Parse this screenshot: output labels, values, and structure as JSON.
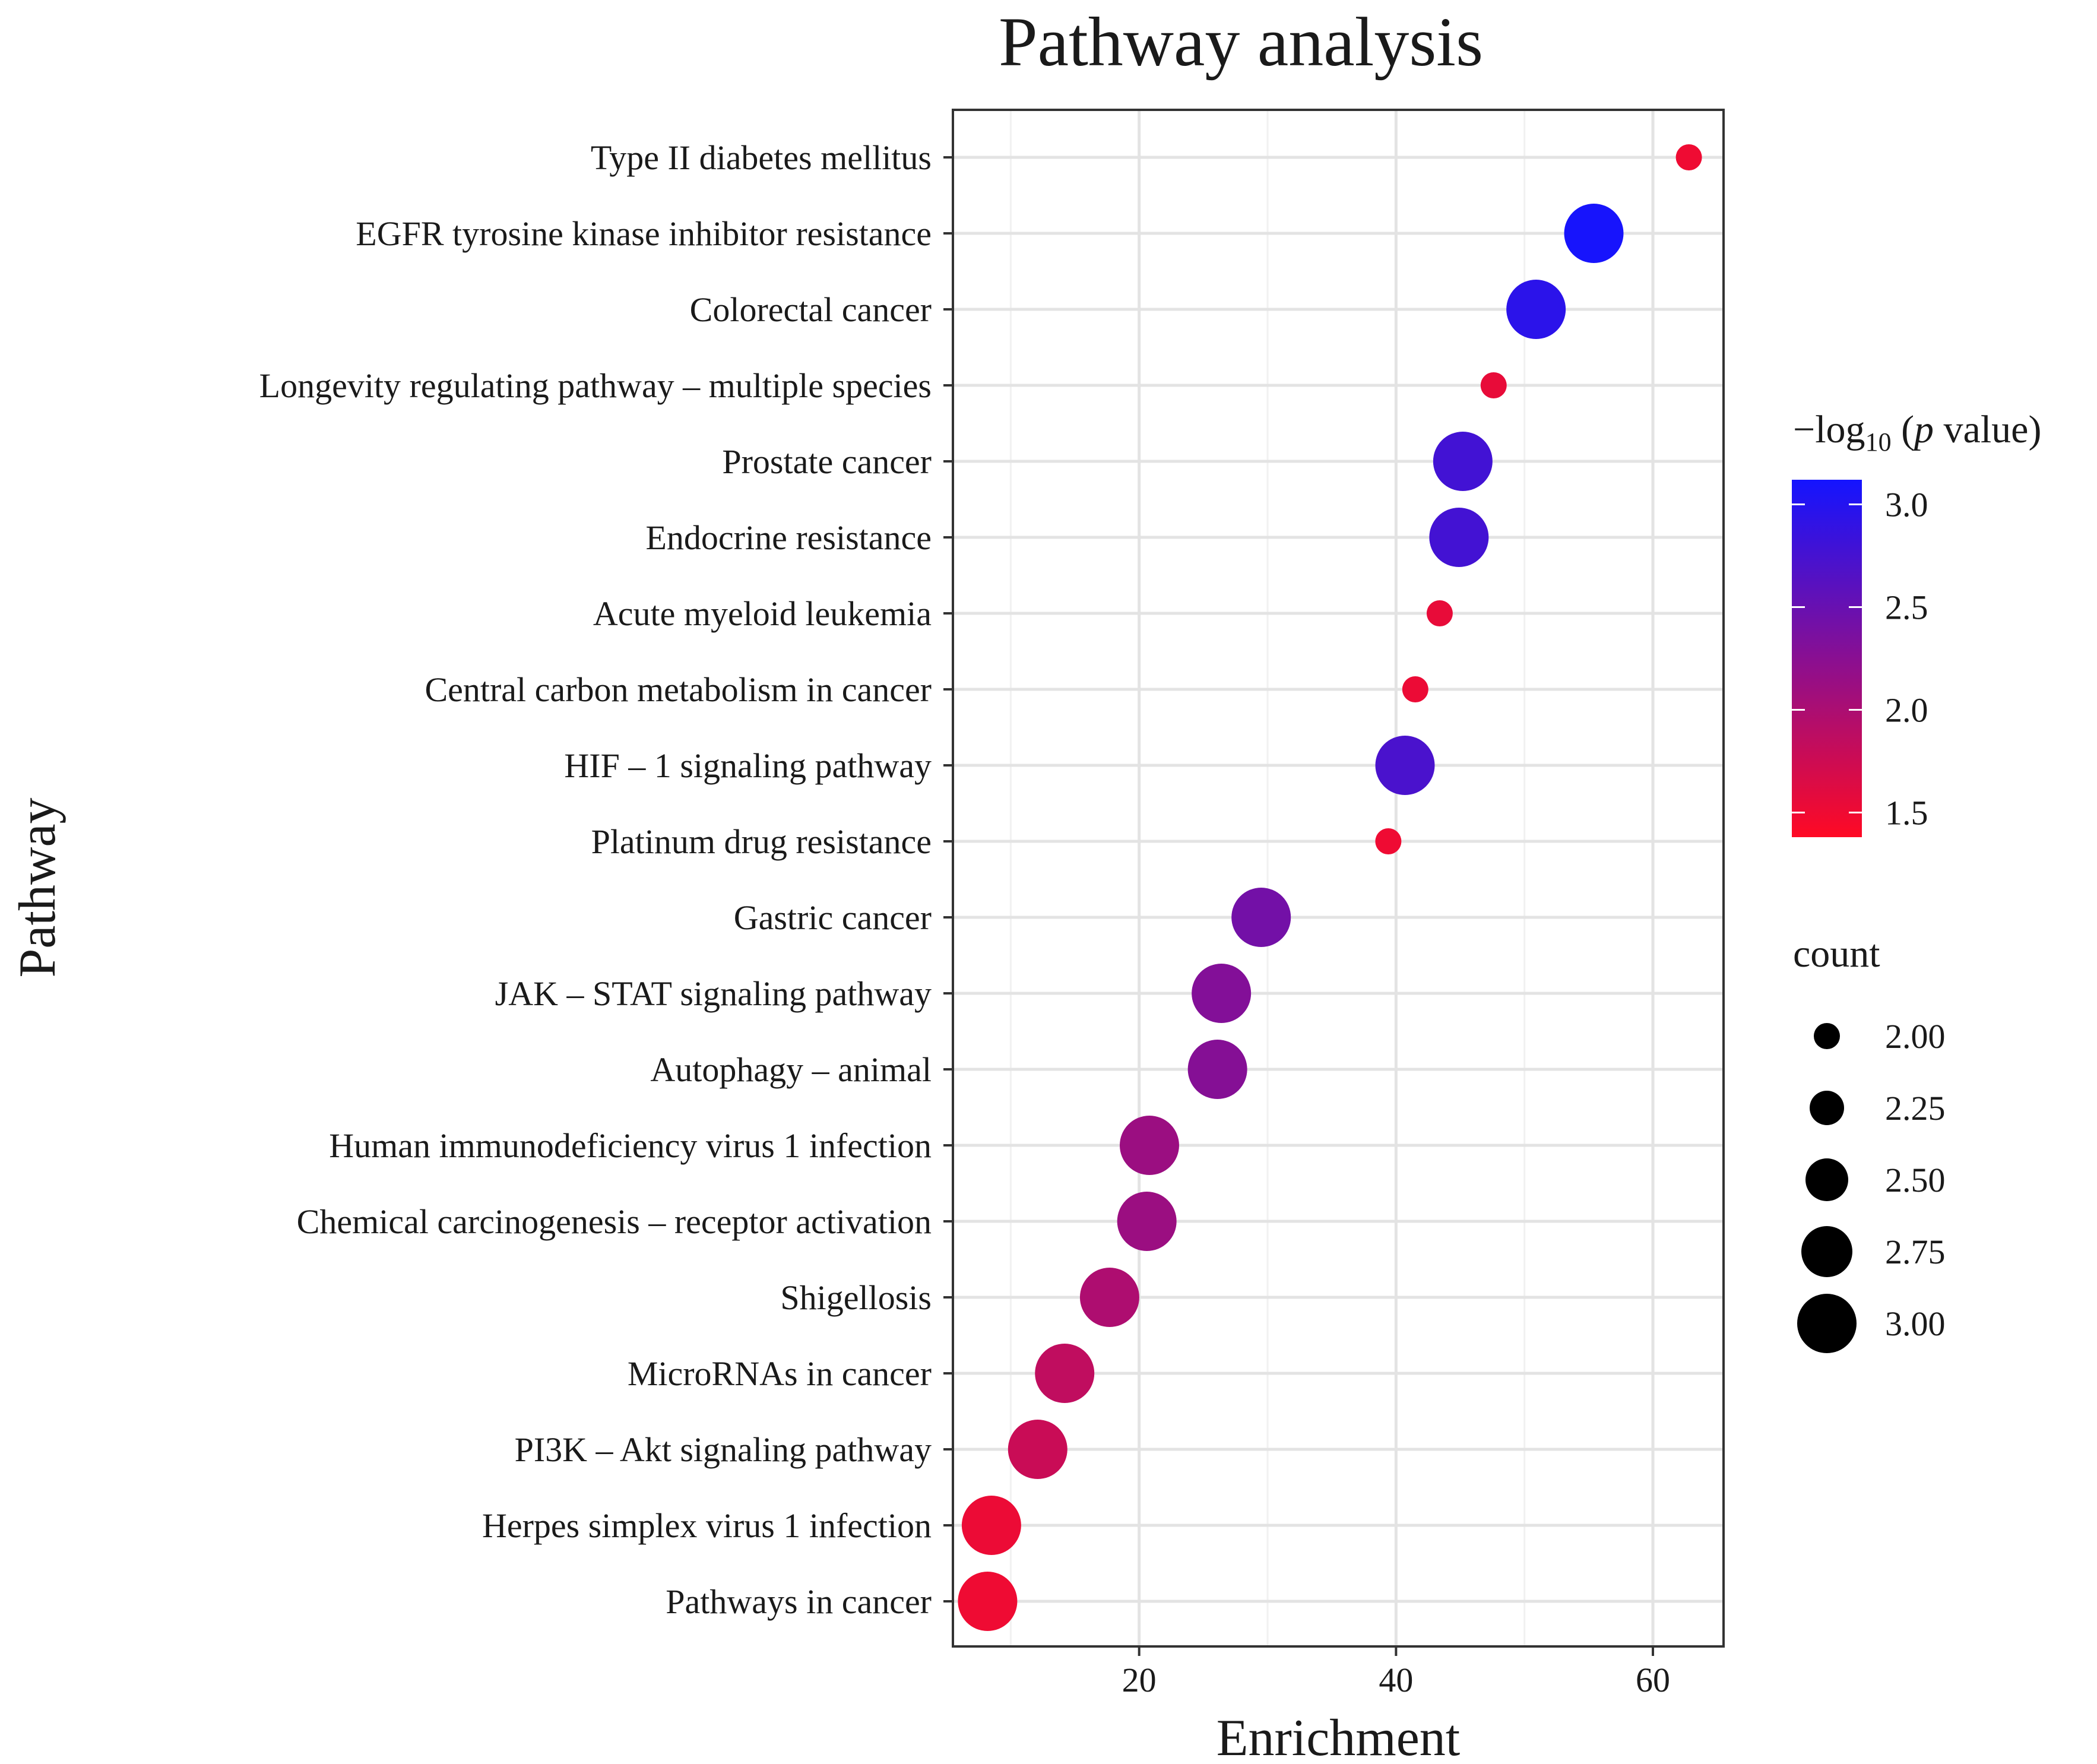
{
  "chart_data": {
    "type": "scatter",
    "title": "Pathway analysis",
    "xlabel": "Enrichment",
    "ylabel": "Pathway",
    "xlim": [
      5.5,
      65.5
    ],
    "xticks": [
      20,
      40,
      60
    ],
    "grid": true,
    "categories": [
      "Type II diabetes mellitus",
      "EGFR tyrosine kinase inhibitor resistance",
      "Colorectal cancer",
      "Longevity regulating pathway – multiple species",
      "Prostate cancer",
      "Endocrine resistance",
      "Acute myeloid leukemia",
      "Central carbon metabolism in cancer",
      "HIF – 1 signaling pathway",
      "Platinum drug resistance",
      "Gastric cancer",
      "JAK – STAT signaling pathway",
      "Autophagy – animal",
      "Human immunodeficiency virus 1 infection",
      "Chemical carcinogenesis – receptor activation",
      "Shigellosis",
      "MicroRNAs in cancer",
      "PI3K – Akt signaling pathway",
      "Herpes simplex virus 1 infection",
      "Pathways in cancer"
    ],
    "points": [
      {
        "pathway": "Type II diabetes mellitus",
        "enrichment": 62.8,
        "count": 2,
        "neg_log10_p": 1.5
      },
      {
        "pathway": "EGFR tyrosine kinase inhibitor resistance",
        "enrichment": 55.4,
        "count": 3,
        "neg_log10_p": 3.1
      },
      {
        "pathway": "Colorectal cancer",
        "enrichment": 50.9,
        "count": 3,
        "neg_log10_p": 2.95
      },
      {
        "pathway": "Longevity regulating pathway – multiple species",
        "enrichment": 47.6,
        "count": 2,
        "neg_log10_p": 1.55
      },
      {
        "pathway": "Prostate cancer",
        "enrichment": 45.2,
        "count": 3,
        "neg_log10_p": 2.78
      },
      {
        "pathway": "Endocrine resistance",
        "enrichment": 44.9,
        "count": 3,
        "neg_log10_p": 2.77
      },
      {
        "pathway": "Acute myeloid leukemia",
        "enrichment": 43.4,
        "count": 2,
        "neg_log10_p": 1.55
      },
      {
        "pathway": "Central carbon metabolism in cancer",
        "enrichment": 41.5,
        "count": 2,
        "neg_log10_p": 1.52
      },
      {
        "pathway": "HIF – 1 signaling pathway",
        "enrichment": 40.7,
        "count": 3,
        "neg_log10_p": 2.72
      },
      {
        "pathway": "Platinum drug resistance",
        "enrichment": 39.4,
        "count": 2,
        "neg_log10_p": 1.5
      },
      {
        "pathway": "Gastric cancer",
        "enrichment": 29.5,
        "count": 3,
        "neg_log10_p": 2.42
      },
      {
        "pathway": "JAK – STAT signaling pathway",
        "enrichment": 26.4,
        "count": 3,
        "neg_log10_p": 2.3
      },
      {
        "pathway": "Autophagy – animal",
        "enrichment": 26.1,
        "count": 3,
        "neg_log10_p": 2.28
      },
      {
        "pathway": "Human immunodeficiency virus 1 infection",
        "enrichment": 20.8,
        "count": 3,
        "neg_log10_p": 2.12
      },
      {
        "pathway": "Chemical carcinogenesis – receptor activation",
        "enrichment": 20.6,
        "count": 3,
        "neg_log10_p": 2.12
      },
      {
        "pathway": "Shigellosis",
        "enrichment": 17.7,
        "count": 3,
        "neg_log10_p": 1.98
      },
      {
        "pathway": "MicroRNAs in cancer",
        "enrichment": 14.2,
        "count": 3,
        "neg_log10_p": 1.85
      },
      {
        "pathway": "PI3K – Akt signaling pathway",
        "enrichment": 12.1,
        "count": 3,
        "neg_log10_p": 1.78
      },
      {
        "pathway": "Herpes simplex virus 1 infection",
        "enrichment": 8.5,
        "count": 3,
        "neg_log10_p": 1.52
      },
      {
        "pathway": "Pathways in cancer",
        "enrichment": 8.2,
        "count": 3,
        "neg_log10_p": 1.5
      }
    ],
    "color_legend": {
      "title_prefix": "−log",
      "title_subscript": "10",
      "title_open": " (",
      "title_italic": "p",
      "title_suffix": " value)",
      "range": [
        1.38,
        3.12
      ],
      "ticks": [
        {
          "value": 1.5,
          "label": "1.5"
        },
        {
          "value": 2.0,
          "label": "2.0"
        },
        {
          "value": 2.5,
          "label": "2.5"
        },
        {
          "value": 3.0,
          "label": "3.0"
        }
      ],
      "low_color": "#ff0a24",
      "high_color": "#1414ff"
    },
    "size_legend": {
      "title": "count",
      "entries": [
        {
          "value": 2.0,
          "label": "2.00"
        },
        {
          "value": 2.25,
          "label": "2.25"
        },
        {
          "value": 2.5,
          "label": "2.50"
        },
        {
          "value": 2.75,
          "label": "2.75"
        },
        {
          "value": 3.0,
          "label": "3.00"
        }
      ]
    },
    "legend_position": "right"
  }
}
